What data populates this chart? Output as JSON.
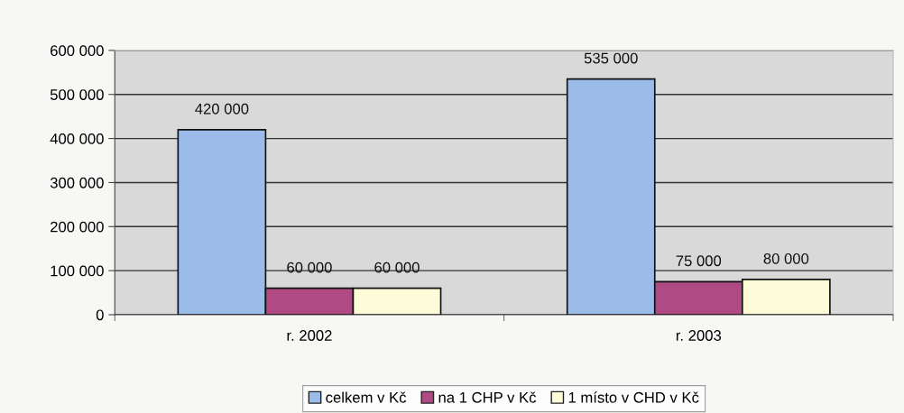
{
  "chart_data": {
    "type": "bar",
    "categories": [
      "r. 2002",
      "r. 2003"
    ],
    "series": [
      {
        "name": "celkem v Kč",
        "color": "#9bbbe8",
        "values": [
          420000,
          535000
        ],
        "value_labels": [
          "420 000",
          "535 000"
        ]
      },
      {
        "name": "na 1 CHP v Kč",
        "color": "#b04a84",
        "values": [
          60000,
          75000
        ],
        "value_labels": [
          "60 000",
          "75 000"
        ]
      },
      {
        "name": "1 místo v CHD v Kč",
        "color": "#fdfbd8",
        "values": [
          60000,
          80000
        ],
        "value_labels": [
          "60 000",
          "80 000"
        ]
      }
    ],
    "ylim": [
      0,
      600000
    ],
    "yticks": [
      0,
      {
        "value": 100000,
        "label": "100 000"
      },
      {
        "value": 200000,
        "label": "200 000"
      },
      {
        "value": 300000,
        "label": "300 000"
      },
      {
        "value": 400000,
        "label": "400 000"
      },
      {
        "value": 500000,
        "label": "500 000"
      },
      {
        "value": 600000,
        "label": "600 000"
      }
    ],
    "grid": "y",
    "legend": "bottom"
  }
}
